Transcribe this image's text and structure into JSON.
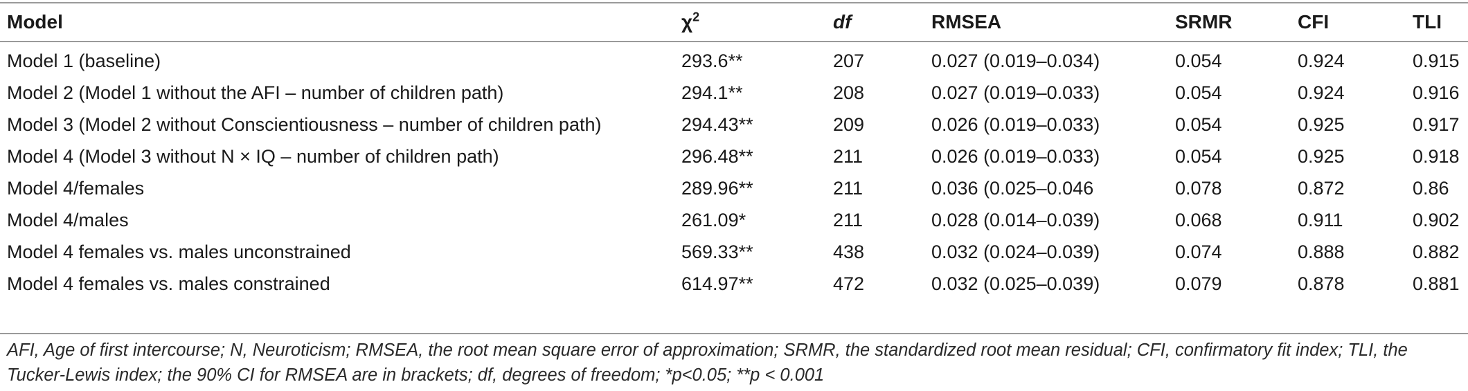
{
  "table": {
    "headers": {
      "model": "Model",
      "chi_base": "χ",
      "chi_sup": "2",
      "df": "df",
      "rmsea": "RMSEA",
      "srmr": "SRMR",
      "cfi": "CFI",
      "tli": "TLI"
    },
    "rows": [
      {
        "model": "Model 1 (baseline)",
        "chi": "293.6**",
        "df": "207",
        "rmsea": "0.027 (0.019–0.034)",
        "srmr": "0.054",
        "cfi": "0.924",
        "tli": "0.915"
      },
      {
        "model": "Model 2 (Model 1 without the AFI – number of children path)",
        "chi": "294.1**",
        "df": "208",
        "rmsea": "0.027 (0.019–0.033)",
        "srmr": "0.054",
        "cfi": "0.924",
        "tli": "0.916"
      },
      {
        "model": "Model 3 (Model 2 without Conscientiousness – number of children path)",
        "chi": "294.43**",
        "df": "209",
        "rmsea": "0.026 (0.019–0.033)",
        "srmr": "0.054",
        "cfi": "0.925",
        "tli": "0.917"
      },
      {
        "model": "Model 4 (Model 3 without N × IQ – number of children path)",
        "chi": "296.48**",
        "df": "211",
        "rmsea": "0.026 (0.019–0.033)",
        "srmr": "0.054",
        "cfi": "0.925",
        "tli": "0.918"
      },
      {
        "model": "Model 4/females",
        "chi": "289.96**",
        "df": "211",
        "rmsea": "0.036 (0.025–0.046",
        "srmr": "0.078",
        "cfi": "0.872",
        "tli": "0.86"
      },
      {
        "model": "Model 4/males",
        "chi": "261.09*",
        "df": "211",
        "rmsea": "0.028 (0.014–0.039)",
        "srmr": "0.068",
        "cfi": "0.911",
        "tli": "0.902"
      },
      {
        "model": "Model 4 females vs. males unconstrained",
        "chi": "569.33**",
        "df": "438",
        "rmsea": "0.032 (0.024–0.039)",
        "srmr": "0.074",
        "cfi": "0.888",
        "tli": "0.882"
      },
      {
        "model": "Model 4 females vs. males constrained",
        "chi": "614.97**",
        "df": "472",
        "rmsea": "0.032 (0.025–0.039)",
        "srmr": "0.079",
        "cfi": "0.878",
        "tli": "0.881"
      }
    ],
    "footnote": "AFI, Age of first intercourse; N, Neuroticism; RMSEA, the root mean square error of approximation; SRMR, the standardized root mean residual; CFI, confirmatory fit index; TLI, the Tucker-Lewis index; the 90% CI for RMSEA are in brackets; df, degrees of freedom; *p<0.05; **p < 0.001"
  }
}
